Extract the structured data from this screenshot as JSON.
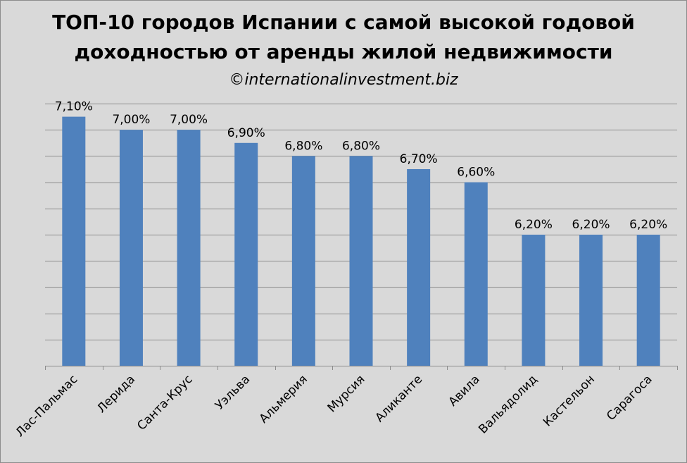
{
  "chart_data": {
    "type": "bar",
    "title": "ТОП-10 городов Испании с самой высокой годовой доходностью от аренды жилой недвижимости",
    "title_lines": [
      "ТОП-10 городов Испании с самой высокой годовой",
      "доходностью от аренды жилой недвижимости"
    ],
    "subtitle": "©internationalinvestment.biz",
    "categories": [
      "Лас-Пальмас",
      "Лерида",
      "Санта-Крус",
      "Уэльва",
      "Альмерия",
      "Мурсия",
      "Аликанте",
      "Авила",
      "Вальядолид",
      "Кастельон",
      "Сарагоса"
    ],
    "values": [
      7.1,
      7.0,
      7.0,
      6.9,
      6.8,
      6.8,
      6.7,
      6.6,
      6.2,
      6.2,
      6.2
    ],
    "value_labels": [
      "7,10%",
      "7,00%",
      "7,00%",
      "6,90%",
      "6,80%",
      "6,80%",
      "6,70%",
      "6,60%",
      "6,20%",
      "6,20%",
      "6,20%"
    ],
    "xlabel": "",
    "ylabel": "",
    "ylim": [
      5.2,
      7.2
    ],
    "y_tick_step": 0.2,
    "grid": true,
    "bar_color": "#4f81bd",
    "grid_color": "#8c8c8c",
    "background": "#d9d9d9"
  }
}
